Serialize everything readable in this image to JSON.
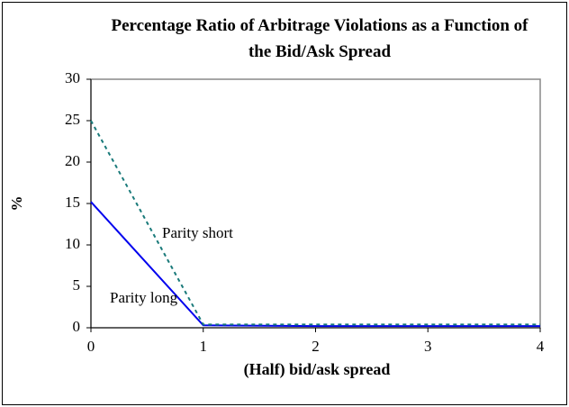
{
  "chart_data": {
    "type": "line",
    "title": "Percentage Ratio of Arbitrage Violations as a Function of the Bid/Ask Spread",
    "x_label": "(Half) bid/ask spread",
    "y_label": "%",
    "x": [
      0,
      1,
      2,
      3,
      4
    ],
    "series": [
      {
        "name": "Parity long",
        "color": "#0000ee",
        "dash": false,
        "values": [
          15.2,
          0.3,
          0.2,
          0.2,
          0.2
        ]
      },
      {
        "name": "Parity short",
        "color": "#1a7a7a",
        "dash": true,
        "values": [
          25,
          0.4,
          0.4,
          0.4,
          0.4
        ]
      }
    ],
    "xlim": [
      0,
      4
    ],
    "xticks": [
      0,
      1,
      2,
      3,
      4
    ],
    "ylim": [
      0,
      30
    ],
    "yticks": [
      0,
      5,
      10,
      15,
      20,
      25,
      30
    ]
  }
}
